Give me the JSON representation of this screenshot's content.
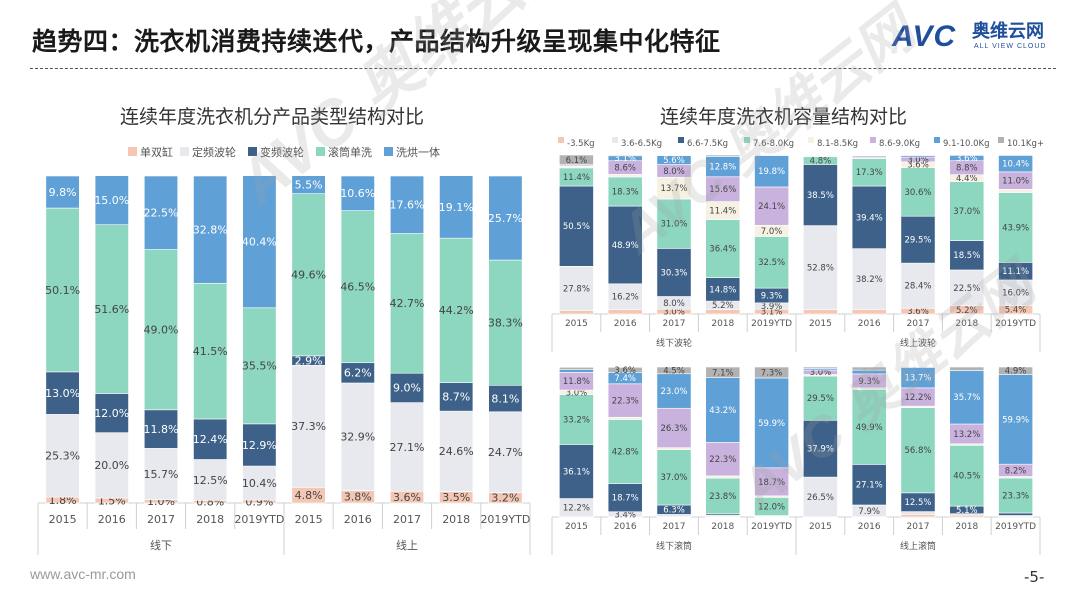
{
  "header": {
    "title": "趋势四：洗衣机消费持续迭代，产品结构升级呈现集中化特征",
    "logo_avc": "AVC",
    "logo_cn": "奥维云网",
    "logo_en": "ALL VIEW CLOUD"
  },
  "footer": {
    "website": "www.avc-mr.com",
    "page": "-5-"
  },
  "watermark": {
    "text": "AVC 奥维云网",
    "sub": "ALL VIEW CLOUD"
  },
  "colors": {
    "single_tub": "#f4c7b5",
    "fixed_pulsator": "#e7e9ee",
    "vf_pulsator": "#3d6188",
    "drum": "#8dd6c0",
    "washer_dryer": "#5fa0d6",
    "c1": "#f4c7b5",
    "c2": "#e7e9ee",
    "c3": "#3d6188",
    "c4": "#8dd6c0",
    "c5": "#f6f1e2",
    "c6": "#c9b2dd",
    "c7": "#5fa0d6",
    "c8": "#b2b2b2"
  },
  "chart_data": [
    {
      "type": "bar",
      "stacked": "percent",
      "title": "连续年度洗衣机分产品类型结构对比",
      "legend": [
        "单双缸",
        "定频波轮",
        "变频波轮",
        "滚筒单洗",
        "洗烘一体"
      ],
      "groups": [
        {
          "name": "线下",
          "categories": [
            "2015",
            "2016",
            "2017",
            "2018",
            "2019YTD"
          ],
          "series": [
            {
              "name": "单双缸",
              "values": [
                1.8,
                1.5,
                1.0,
                0.8,
                0.9
              ]
            },
            {
              "name": "定频波轮",
              "values": [
                25.3,
                20.0,
                15.7,
                12.5,
                10.4
              ]
            },
            {
              "name": "变频波轮",
              "values": [
                13.0,
                12.0,
                11.8,
                12.4,
                12.9
              ]
            },
            {
              "name": "滚筒单洗",
              "values": [
                50.1,
                51.6,
                49.0,
                41.5,
                35.5
              ]
            },
            {
              "name": "洗烘一体",
              "values": [
                9.8,
                15.0,
                22.5,
                32.8,
                40.4
              ]
            }
          ]
        },
        {
          "name": "线上",
          "categories": [
            "2015",
            "2016",
            "2017",
            "2018",
            "2019YTD"
          ],
          "series": [
            {
              "name": "单双缸",
              "values": [
                4.8,
                3.8,
                3.6,
                3.5,
                3.2
              ]
            },
            {
              "name": "定频波轮",
              "values": [
                37.3,
                32.9,
                27.1,
                24.6,
                24.7
              ]
            },
            {
              "name": "变频波轮",
              "values": [
                2.9,
                6.2,
                9.0,
                8.7,
                8.1
              ]
            },
            {
              "name": "滚筒单洗",
              "values": [
                49.6,
                46.5,
                42.7,
                44.2,
                38.3
              ]
            },
            {
              "name": "洗烘一体",
              "values": [
                5.5,
                10.6,
                17.6,
                19.1,
                25.7
              ]
            }
          ]
        }
      ]
    },
    {
      "type": "bar",
      "stacked": "percent",
      "title": "连续年度洗衣机容量结构对比",
      "legend": [
        "-3.5Kg",
        "3.6-6.5Kg",
        "6.6-7.5Kg",
        "7.6-8.0Kg",
        "8.1-8.5Kg",
        "8.6-9.0Kg",
        "9.1-10.0Kg",
        "10.1Kg+"
      ],
      "groups": [
        {
          "name": "线下波轮",
          "categories": [
            "2015",
            "2016",
            "2017",
            "2018",
            "2019YTD"
          ],
          "series": [
            {
              "name": "-3.5Kg",
              "values": [
                2.2,
                2.8,
                3.0,
                2.9,
                3.1
              ]
            },
            {
              "name": "3.6-6.5Kg",
              "values": [
                27.8,
                16.2,
                8.0,
                5.2,
                3.9
              ]
            },
            {
              "name": "6.6-7.5Kg",
              "values": [
                50.5,
                48.9,
                30.3,
                14.8,
                9.3
              ]
            },
            {
              "name": "7.6-8.0Kg",
              "values": [
                11.4,
                18.3,
                31.0,
                36.4,
                32.5
              ]
            },
            {
              "name": "8.1-8.5Kg",
              "values": [
                1.0,
                1.6,
                13.7,
                11.4,
                7.0
              ]
            },
            {
              "name": "8.6-9.0Kg",
              "values": [
                0.9,
                8.6,
                8.0,
                15.6,
                24.1
              ]
            },
            {
              "name": "9.1-10.0Kg",
              "values": [
                0.1,
                3.1,
                5.6,
                12.8,
                19.8
              ]
            },
            {
              "name": "10.1Kg+",
              "values": [
                6.1,
                0.5,
                0.4,
                0.9,
                0.3
              ]
            }
          ]
        },
        {
          "name": "线上波轮",
          "categories": [
            "2015",
            "2016",
            "2017",
            "2018",
            "2019YTD"
          ],
          "series": [
            {
              "name": "-3.5Kg",
              "values": [
                2.8,
                2.9,
                3.6,
                5.2,
                5.4
              ]
            },
            {
              "name": "3.6-6.5Kg",
              "values": [
                52.8,
                38.2,
                28.4,
                22.5,
                16.0
              ]
            },
            {
              "name": "6.6-7.5Kg",
              "values": [
                38.5,
                39.4,
                29.5,
                18.5,
                11.1
              ]
            },
            {
              "name": "7.6-8.0Kg",
              "values": [
                4.8,
                17.3,
                30.6,
                37.0,
                43.9
              ]
            },
            {
              "name": "8.1-8.5Kg",
              "values": [
                0.6,
                0.5,
                3.6,
                4.4,
                2.0
              ]
            },
            {
              "name": "8.6-9.0Kg",
              "values": [
                0.3,
                1.2,
                3.0,
                8.8,
                11.0
              ]
            },
            {
              "name": "9.1-10.0Kg",
              "values": [
                0.1,
                0.2,
                1.0,
                3.6,
                10.4
              ]
            },
            {
              "name": "10.1Kg+",
              "values": [
                0.1,
                0.3,
                0.3,
                0.0,
                0.2
              ]
            }
          ]
        },
        {
          "name": "线下滚筒",
          "categories": [
            "2015",
            "2016",
            "2017",
            "2018",
            "2019YTD"
          ],
          "series": [
            {
              "name": "-3.5Kg",
              "values": [
                0.1,
                0.1,
                0.1,
                0.1,
                0.1
              ]
            },
            {
              "name": "3.6-6.5Kg",
              "values": [
                12.2,
                3.4,
                1.6,
                1.0,
                0.5
              ]
            },
            {
              "name": "6.6-7.5Kg",
              "values": [
                36.1,
                18.7,
                6.3,
                1.0,
                0.5
              ]
            },
            {
              "name": "7.6-8.0Kg",
              "values": [
                33.2,
                42.8,
                37.0,
                23.8,
                12.0
              ]
            },
            {
              "name": "8.1-8.5Kg",
              "values": [
                3.0,
                1.5,
                1.2,
                1.5,
                1.0
              ]
            },
            {
              "name": "8.6-9.0Kg",
              "values": [
                11.8,
                22.3,
                26.3,
                22.3,
                18.7
              ]
            },
            {
              "name": "9.1-10.0Kg",
              "values": [
                1.8,
                7.4,
                23.0,
                43.2,
                59.9
              ]
            },
            {
              "name": "10.1Kg+",
              "values": [
                1.6,
                3.6,
                4.5,
                7.1,
                7.3
              ]
            }
          ]
        },
        {
          "name": "线上滚筒",
          "categories": [
            "2015",
            "2016",
            "2017",
            "2018",
            "2019YTD"
          ],
          "series": [
            {
              "name": "-3.5Kg",
              "values": [
                0.1,
                0.1,
                1.8,
                1.2,
                0.5
              ]
            },
            {
              "name": "3.6-6.5Kg",
              "values": [
                26.5,
                7.9,
                1.8,
                1.0,
                0.5
              ]
            },
            {
              "name": "6.6-7.5Kg",
              "values": [
                37.9,
                27.1,
                12.5,
                5.1,
                1.7
              ]
            },
            {
              "name": "7.6-8.0Kg",
              "values": [
                29.5,
                49.9,
                56.8,
                40.5,
                23.3
              ]
            },
            {
              "name": "8.1-8.5Kg",
              "values": [
                1.0,
                1.1,
                1.0,
                1.0,
                1.0
              ]
            },
            {
              "name": "8.6-9.0Kg",
              "values": [
                3.0,
                9.3,
                12.2,
                13.2,
                8.2
              ]
            },
            {
              "name": "9.1-10.0Kg",
              "values": [
                1.1,
                2.5,
                13.7,
                35.7,
                59.9
              ]
            },
            {
              "name": "10.1Kg+",
              "values": [
                0.9,
                2.1,
                0.2,
                2.3,
                4.9
              ]
            }
          ]
        }
      ]
    }
  ]
}
